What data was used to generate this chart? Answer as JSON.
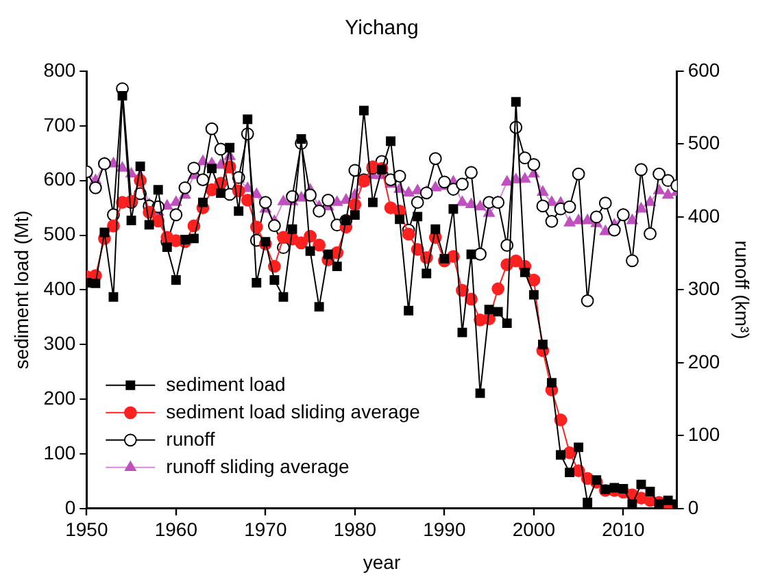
{
  "chart_data": {
    "type": "line",
    "title": "Yichang",
    "xlabel": "year",
    "ylabel": "sediment load (Mt)",
    "y2label": "runoff (km³)",
    "x": [
      1950,
      1951,
      1952,
      1953,
      1954,
      1955,
      1956,
      1957,
      1958,
      1959,
      1960,
      1961,
      1962,
      1963,
      1964,
      1965,
      1966,
      1967,
      1968,
      1969,
      1970,
      1971,
      1972,
      1973,
      1974,
      1975,
      1976,
      1977,
      1978,
      1979,
      1980,
      1981,
      1982,
      1983,
      1984,
      1985,
      1986,
      1987,
      1988,
      1989,
      1990,
      1991,
      1992,
      1993,
      1994,
      1995,
      1996,
      1997,
      1998,
      1999,
      2000,
      2001,
      2002,
      2003,
      2004,
      2005,
      2006,
      2007,
      2008,
      2009,
      2010,
      2011,
      2012,
      2013,
      2014,
      2015,
      2016
    ],
    "series": [
      {
        "name": "sediment load",
        "color": "#000000",
        "marker": "square",
        "values": [
          413,
          412,
          505,
          387,
          755,
          527,
          626,
          519,
          583,
          478,
          418,
          492,
          494,
          560,
          622,
          577,
          660,
          544,
          712,
          413,
          488,
          418,
          387,
          511,
          676,
          471,
          369,
          465,
          443,
          527,
          537,
          728,
          560,
          620,
          672,
          529,
          362,
          534,
          430,
          511,
          457,
          548,
          322,
          465,
          211,
          364,
          360,
          339,
          744,
          432,
          391,
          300,
          230,
          98,
          66,
          112,
          11,
          52,
          35,
          38,
          36,
          8,
          44,
          31,
          8,
          15,
          8
        ]
      },
      {
        "name": "sediment load sliding average",
        "color": "#ff2020",
        "marker": "circle",
        "values": [
          424,
          426,
          494,
          517,
          560,
          562,
          600,
          542,
          526,
          496,
          490,
          488,
          517,
          550,
          583,
          595,
          625,
          581,
          564,
          515,
          484,
          443,
          496,
          493,
          486,
          498,
          482,
          455,
          468,
          515,
          556,
          599,
          625,
          622,
          550,
          544,
          502,
          474,
          459,
          496,
          453,
          461,
          399,
          383,
          345,
          347,
          402,
          446,
          453,
          443,
          418,
          289,
          217,
          162,
          102,
          69,
          55,
          48,
          33,
          33,
          30,
          25,
          19,
          15,
          11,
          7,
          5
        ]
      },
      {
        "name": "runoff",
        "color": "#000000",
        "marker": "circle",
        "axis": "y2",
        "values": [
          462,
          440,
          473,
          403,
          576,
          420,
          432,
          415,
          414,
          366,
          403,
          440,
          467,
          451,
          521,
          493,
          431,
          454,
          514,
          368,
          420,
          388,
          358,
          428,
          501,
          430,
          408,
          423,
          389,
          395,
          464,
          451,
          467,
          476,
          451,
          456,
          382,
          420,
          433,
          480,
          448,
          438,
          445,
          461,
          349,
          420,
          420,
          361,
          523,
          481,
          472,
          415,
          394,
          411,
          414,
          459,
          285,
          400,
          419,
          382,
          403,
          340,
          465,
          377,
          459,
          450,
          443
        ]
      },
      {
        "name": "runoff sliding average",
        "color": "#c050c0",
        "marker": "triangle",
        "axis": "y2",
        "values": [
          460,
          450,
          473,
          473,
          467,
          459,
          456,
          417,
          407,
          415,
          420,
          430,
          457,
          476,
          473,
          471,
          483,
          452,
          439,
          431,
          411,
          394,
          421,
          421,
          426,
          437,
          414,
          414,
          420,
          423,
          430,
          448,
          457,
          457,
          445,
          438,
          433,
          436,
          434,
          440,
          442,
          448,
          420,
          417,
          414,
          405,
          420,
          448,
          451,
          452,
          459,
          434,
          420,
          419,
          392,
          395,
          395,
          391,
          380,
          389,
          403,
          395,
          411,
          420,
          436,
          430,
          434
        ]
      }
    ],
    "xlim": [
      1950,
      2016
    ],
    "xticks": [
      1950,
      1960,
      1970,
      1980,
      1990,
      2000,
      2010
    ],
    "ylim": [
      0,
      800
    ],
    "yticks": [
      0,
      100,
      200,
      300,
      400,
      500,
      600,
      700,
      800
    ],
    "y2lim": [
      0,
      600
    ],
    "y2ticks": [
      0,
      100,
      200,
      300,
      400,
      500,
      600
    ],
    "grid": false,
    "legend": "bottom left",
    "line_style": "solid"
  }
}
